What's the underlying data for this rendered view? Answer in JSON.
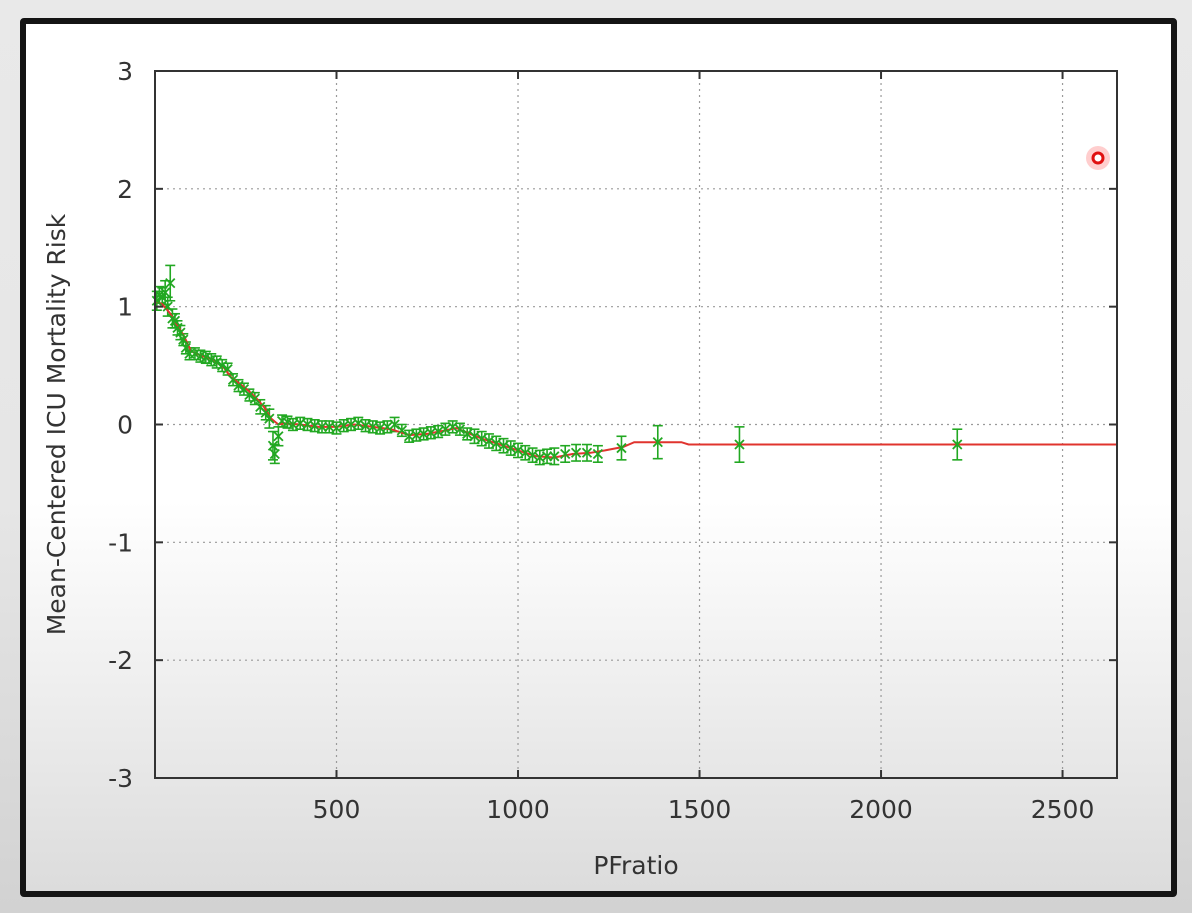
{
  "chart_data": {
    "type": "line",
    "xlabel": "PFratio",
    "ylabel": "Mean-Centered ICU Mortality Risk",
    "xlim": [
      0,
      2650
    ],
    "ylim": [
      -3,
      3
    ],
    "x_ticks": [
      "500",
      "1000",
      "1500",
      "2000",
      "2500"
    ],
    "y_ticks": [
      "3",
      "2",
      "1",
      "0",
      "-1",
      "-2",
      "-3"
    ],
    "grid": true,
    "colors": {
      "fit": "#e0342e",
      "points": "#22a822",
      "axes": "#333333",
      "grid": "#9a9a9a"
    },
    "series": [
      {
        "kind": "line",
        "points": [
          [
            0,
            1.05
          ],
          [
            20,
            1.02
          ],
          [
            40,
            0.95
          ],
          [
            60,
            0.85
          ],
          [
            80,
            0.75
          ],
          [
            100,
            0.62
          ],
          [
            130,
            0.58
          ],
          [
            160,
            0.55
          ],
          [
            190,
            0.48
          ],
          [
            210,
            0.4
          ],
          [
            240,
            0.33
          ],
          [
            260,
            0.28
          ],
          [
            280,
            0.22
          ],
          [
            300,
            0.15
          ],
          [
            320,
            0.05
          ],
          [
            340,
            0.0
          ],
          [
            360,
            0.01
          ],
          [
            400,
            0.0
          ],
          [
            450,
            -0.02
          ],
          [
            500,
            -0.02
          ],
          [
            550,
            0.0
          ],
          [
            600,
            -0.02
          ],
          [
            650,
            -0.04
          ],
          [
            700,
            -0.09
          ],
          [
            750,
            -0.08
          ],
          [
            800,
            -0.05
          ],
          [
            830,
            -0.03
          ],
          [
            860,
            -0.07
          ],
          [
            900,
            -0.12
          ],
          [
            950,
            -0.17
          ],
          [
            1000,
            -0.22
          ],
          [
            1050,
            -0.27
          ],
          [
            1100,
            -0.28
          ],
          [
            1150,
            -0.25
          ],
          [
            1200,
            -0.24
          ],
          [
            1240,
            -0.22
          ],
          [
            1290,
            -0.19
          ],
          [
            1320,
            -0.15
          ],
          [
            1450,
            -0.15
          ],
          [
            1470,
            -0.17
          ],
          [
            2650,
            -0.17
          ]
        ]
      },
      {
        "kind": "points_with_error",
        "points": [
          [
            5,
            1.05,
            0.08
          ],
          [
            12,
            1.1,
            0.07
          ],
          [
            20,
            1.08,
            0.08
          ],
          [
            28,
            1.12,
            0.1
          ],
          [
            35,
            1.0,
            0.08
          ],
          [
            42,
            1.2,
            0.15
          ],
          [
            48,
            0.9,
            0.08
          ],
          [
            55,
            0.88,
            0.06
          ],
          [
            62,
            0.82,
            0.06
          ],
          [
            70,
            0.78,
            0.06
          ],
          [
            78,
            0.72,
            0.05
          ],
          [
            85,
            0.65,
            0.05
          ],
          [
            95,
            0.6,
            0.05
          ],
          [
            110,
            0.6,
            0.05
          ],
          [
            125,
            0.58,
            0.05
          ],
          [
            140,
            0.57,
            0.05
          ],
          [
            155,
            0.55,
            0.05
          ],
          [
            170,
            0.53,
            0.05
          ],
          [
            185,
            0.5,
            0.05
          ],
          [
            200,
            0.47,
            0.05
          ],
          [
            215,
            0.38,
            0.05
          ],
          [
            230,
            0.33,
            0.05
          ],
          [
            245,
            0.3,
            0.05
          ],
          [
            260,
            0.25,
            0.05
          ],
          [
            275,
            0.22,
            0.05
          ],
          [
            290,
            0.15,
            0.06
          ],
          [
            305,
            0.1,
            0.06
          ],
          [
            315,
            0.05,
            0.08
          ],
          [
            325,
            -0.18,
            0.12
          ],
          [
            330,
            -0.25,
            0.08
          ],
          [
            340,
            -0.1,
            0.08
          ],
          [
            350,
            0.03,
            0.05
          ],
          [
            365,
            0.02,
            0.05
          ],
          [
            380,
            0.0,
            0.05
          ],
          [
            400,
            0.01,
            0.05
          ],
          [
            420,
            0.0,
            0.05
          ],
          [
            440,
            -0.01,
            0.05
          ],
          [
            460,
            -0.02,
            0.05
          ],
          [
            480,
            -0.02,
            0.05
          ],
          [
            500,
            -0.03,
            0.05
          ],
          [
            520,
            -0.01,
            0.05
          ],
          [
            540,
            0.0,
            0.05
          ],
          [
            560,
            0.01,
            0.05
          ],
          [
            580,
            -0.01,
            0.05
          ],
          [
            600,
            -0.02,
            0.05
          ],
          [
            620,
            -0.03,
            0.05
          ],
          [
            640,
            -0.02,
            0.05
          ],
          [
            660,
            0.0,
            0.06
          ],
          [
            680,
            -0.05,
            0.05
          ],
          [
            700,
            -0.1,
            0.05
          ],
          [
            720,
            -0.09,
            0.05
          ],
          [
            740,
            -0.08,
            0.05
          ],
          [
            760,
            -0.07,
            0.05
          ],
          [
            780,
            -0.06,
            0.05
          ],
          [
            800,
            -0.04,
            0.05
          ],
          [
            820,
            -0.02,
            0.05
          ],
          [
            840,
            -0.04,
            0.05
          ],
          [
            860,
            -0.08,
            0.05
          ],
          [
            880,
            -0.1,
            0.06
          ],
          [
            900,
            -0.12,
            0.06
          ],
          [
            920,
            -0.14,
            0.06
          ],
          [
            940,
            -0.16,
            0.06
          ],
          [
            960,
            -0.18,
            0.06
          ],
          [
            980,
            -0.2,
            0.06
          ],
          [
            1000,
            -0.22,
            0.06
          ],
          [
            1020,
            -0.24,
            0.06
          ],
          [
            1040,
            -0.26,
            0.06
          ],
          [
            1060,
            -0.28,
            0.06
          ],
          [
            1080,
            -0.27,
            0.06
          ],
          [
            1100,
            -0.27,
            0.07
          ],
          [
            1130,
            -0.25,
            0.07
          ],
          [
            1160,
            -0.24,
            0.07
          ],
          [
            1190,
            -0.24,
            0.07
          ],
          [
            1220,
            -0.25,
            0.07
          ],
          [
            1285,
            -0.2,
            0.1
          ],
          [
            1385,
            -0.15,
            0.14
          ],
          [
            1610,
            -0.17,
            0.15
          ],
          [
            2210,
            -0.17,
            0.13
          ]
        ]
      }
    ]
  }
}
